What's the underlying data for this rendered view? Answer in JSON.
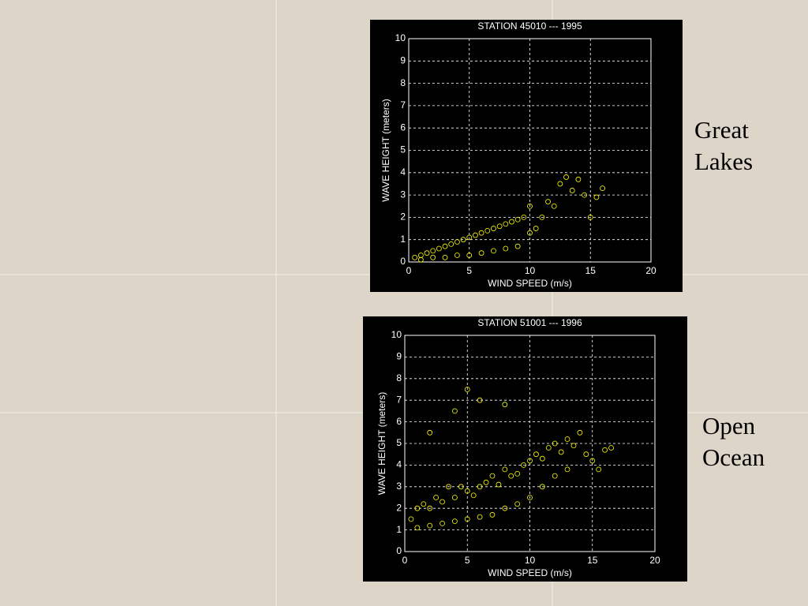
{
  "chart_data": [
    {
      "type": "scatter",
      "title": "STATION 45010 --- 1995",
      "x_label": "WIND SPEED (m/s)",
      "y_label": "WAVE HEIGHT (meters)",
      "annotation": "Great Lakes",
      "color": "#ffff00",
      "grid": true,
      "xlim": [
        0,
        20
      ],
      "xticks": [
        0,
        5,
        10,
        15,
        20
      ],
      "ylim": [
        0,
        10
      ],
      "yticks": [
        0,
        1,
        2,
        3,
        4,
        5,
        6,
        7,
        8,
        9,
        10
      ],
      "x": [
        0.5,
        1,
        1.5,
        2,
        2.5,
        3,
        3.5,
        4,
        4.5,
        5,
        5.5,
        6,
        6.5,
        7,
        7.5,
        8,
        8.5,
        9,
        9.5,
        10,
        10.5,
        11,
        11.5,
        12,
        12.5,
        13,
        13.5,
        14,
        14.5,
        15,
        15.5,
        16,
        1,
        2,
        3,
        4,
        5,
        6,
        7,
        8,
        9,
        10
      ],
      "values": [
        0.2,
        0.3,
        0.4,
        0.5,
        0.6,
        0.7,
        0.8,
        0.9,
        1.0,
        1.1,
        1.2,
        1.3,
        1.4,
        1.5,
        1.6,
        1.7,
        1.8,
        1.9,
        2.0,
        2.5,
        1.5,
        2.0,
        2.7,
        2.5,
        3.5,
        3.8,
        3.2,
        3.7,
        3.0,
        2.0,
        2.9,
        3.3,
        0.1,
        0.2,
        0.2,
        0.3,
        0.3,
        0.4,
        0.5,
        0.6,
        0.7,
        1.3
      ]
    },
    {
      "type": "scatter",
      "title": "STATION 51001 --- 1996",
      "x_label": "WIND SPEED (m/s)",
      "y_label": "WAVE HEIGHT (meters)",
      "annotation": "Open Ocean",
      "color": "#ffff00",
      "grid": true,
      "xlim": [
        0,
        20
      ],
      "xticks": [
        0,
        5,
        10,
        15,
        20
      ],
      "ylim": [
        0,
        10
      ],
      "yticks": [
        0,
        1,
        2,
        3,
        4,
        5,
        6,
        7,
        8,
        9,
        10
      ],
      "x": [
        0.5,
        1,
        1.5,
        2,
        2.5,
        3,
        3.5,
        4,
        4.5,
        5,
        5.5,
        6,
        6.5,
        7,
        7.5,
        8,
        8.5,
        9,
        9.5,
        10,
        10.5,
        11,
        11.5,
        12,
        12.5,
        13,
        13.5,
        14,
        14.5,
        15,
        15.5,
        16,
        16.5,
        1,
        2,
        3,
        4,
        5,
        6,
        7,
        8,
        9,
        10,
        11,
        12,
        13,
        2,
        4,
        5,
        6,
        8
      ],
      "values": [
        1.5,
        2,
        2.2,
        2,
        2.5,
        2.3,
        3,
        2.5,
        3,
        2.8,
        2.6,
        3,
        3.2,
        3.5,
        3.1,
        3.8,
        3.5,
        3.6,
        4,
        4.2,
        4.5,
        4.3,
        4.8,
        5,
        4.6,
        5.2,
        4.9,
        5.5,
        4.5,
        4.2,
        3.8,
        4.7,
        4.8,
        1.1,
        1.2,
        1.3,
        1.4,
        1.5,
        1.6,
        1.7,
        2,
        2.2,
        2.5,
        3,
        3.5,
        3.8,
        5.5,
        6.5,
        7.5,
        7,
        6.8
      ]
    }
  ]
}
